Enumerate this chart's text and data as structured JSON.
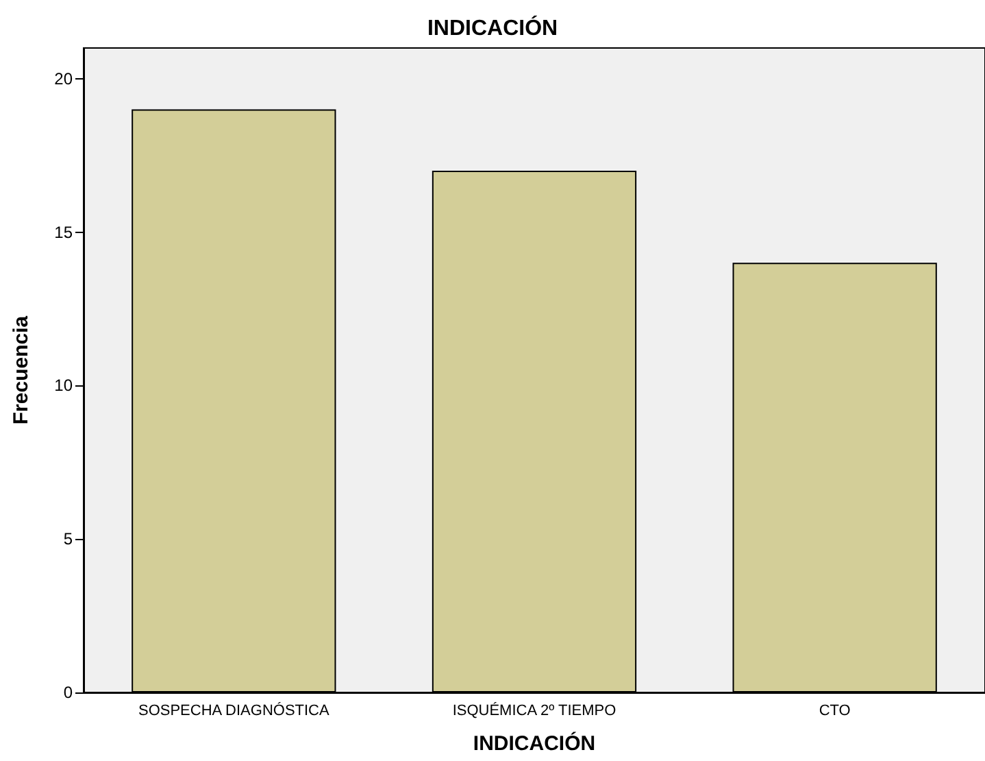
{
  "chart_data": {
    "type": "bar",
    "title": "INDICACIÓN",
    "xlabel": "INDICACIÓN",
    "ylabel": "Frecuencia",
    "categories": [
      "SOSPECHA DIAGNÓSTICA",
      "ISQUÉMICA 2º TIEMPO",
      "CTO"
    ],
    "values": [
      19,
      17,
      14
    ],
    "color": "#d3ce98",
    "ylim": [
      0,
      21
    ],
    "yticks": [
      0,
      5,
      10,
      15,
      20
    ],
    "grid": false
  }
}
